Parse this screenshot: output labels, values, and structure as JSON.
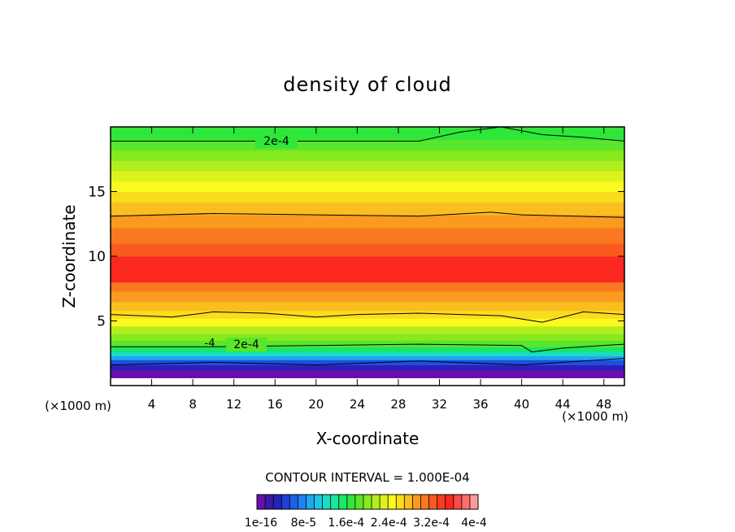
{
  "chart_data": {
    "type": "heatmap",
    "title": "density of cloud",
    "xlabel": "X-coordinate",
    "ylabel": "Z-coordinate",
    "x_unit_left": "(×1000 m)",
    "x_unit_right": "(×1000 m)",
    "xlim": [
      0,
      50
    ],
    "ylim": [
      0,
      20
    ],
    "x_ticks": [
      4,
      8,
      12,
      16,
      20,
      24,
      28,
      32,
      36,
      40,
      44,
      48
    ],
    "y_ticks": [
      5,
      10,
      15
    ],
    "contour_interval_text": "CONTOUR INTERVAL = 1.000E-04",
    "contour_labels": [
      "2e-4",
      "2e-4",
      "-4"
    ],
    "colorbar": {
      "colors": [
        "#6a0dad",
        "#3a1aa0",
        "#1f25b8",
        "#1f3fd6",
        "#1f5fe6",
        "#1f82ee",
        "#1fa6ee",
        "#19c6e6",
        "#19dcc6",
        "#19e69a",
        "#19e66a",
        "#2fe63a",
        "#5ae62a",
        "#86ea1f",
        "#b2ee1f",
        "#dcf21f",
        "#fafa1f",
        "#fadc1f",
        "#fabe1f",
        "#fa9a1f",
        "#fa781f",
        "#fa5a1f",
        "#fa3c1f",
        "#fa281f",
        "#fa4a4a",
        "#fa6e6e",
        "#fa9a9a"
      ],
      "labels": [
        "1e-16",
        "8e-5",
        "1.6e-4",
        "2.4e-4",
        "3.2e-4",
        "4e-4"
      ]
    },
    "bands": [
      {
        "z_low": 0.0,
        "z_high": 0.6,
        "color": "#ffffff"
      },
      {
        "z_low": 0.6,
        "z_high": 1.2,
        "color": "#6a0dad"
      },
      {
        "z_low": 1.2,
        "z_high": 1.6,
        "color": "#2d1fb8"
      },
      {
        "z_low": 1.6,
        "z_high": 2.0,
        "color": "#1f4fe0"
      },
      {
        "z_low": 2.0,
        "z_high": 2.3,
        "color": "#1fa6ee"
      },
      {
        "z_low": 2.3,
        "z_high": 2.6,
        "color": "#19dcc6"
      },
      {
        "z_low": 2.6,
        "z_high": 3.0,
        "color": "#19e66a"
      },
      {
        "z_low": 3.0,
        "z_high": 3.5,
        "color": "#5ae62a"
      },
      {
        "z_low": 3.5,
        "z_high": 4.0,
        "color": "#86ea1f"
      },
      {
        "z_low": 4.0,
        "z_high": 4.6,
        "color": "#b2ee1f"
      },
      {
        "z_low": 4.6,
        "z_high": 5.2,
        "color": "#fafa1f"
      },
      {
        "z_low": 5.2,
        "z_high": 5.8,
        "color": "#fadc1f"
      },
      {
        "z_low": 5.8,
        "z_high": 6.5,
        "color": "#fabe1f"
      },
      {
        "z_low": 6.5,
        "z_high": 7.3,
        "color": "#fa9a1f"
      },
      {
        "z_low": 7.3,
        "z_high": 8.0,
        "color": "#fa781f"
      },
      {
        "z_low": 8.0,
        "z_high": 10.0,
        "color": "#fa281f"
      },
      {
        "z_low": 10.0,
        "z_high": 11.0,
        "color": "#fa5a1f"
      },
      {
        "z_low": 11.0,
        "z_high": 12.2,
        "color": "#fa781f"
      },
      {
        "z_low": 12.2,
        "z_high": 13.2,
        "color": "#fa9a1f"
      },
      {
        "z_low": 13.2,
        "z_high": 14.2,
        "color": "#fabe1f"
      },
      {
        "z_low": 14.2,
        "z_high": 15.0,
        "color": "#fadc1f"
      },
      {
        "z_low": 15.0,
        "z_high": 15.8,
        "color": "#fafa1f"
      },
      {
        "z_low": 15.8,
        "z_high": 16.6,
        "color": "#dcf21f"
      },
      {
        "z_low": 16.6,
        "z_high": 17.4,
        "color": "#b2ee1f"
      },
      {
        "z_low": 17.4,
        "z_high": 18.2,
        "color": "#86ea1f"
      },
      {
        "z_low": 18.2,
        "z_high": 19.0,
        "color": "#5ae62a"
      },
      {
        "z_low": 19.0,
        "z_high": 20.0,
        "color": "#2fe63a"
      }
    ],
    "contours": [
      {
        "level": "2e-4",
        "points": [
          [
            0,
            18.9
          ],
          [
            30,
            18.9
          ],
          [
            34,
            19.6
          ],
          [
            38,
            20.0
          ],
          [
            42,
            19.4
          ],
          [
            46,
            19.2
          ],
          [
            50,
            18.9
          ]
        ]
      },
      {
        "level": "",
        "points": [
          [
            0,
            13.1
          ],
          [
            10,
            13.3
          ],
          [
            20,
            13.2
          ],
          [
            30,
            13.1
          ],
          [
            37,
            13.4
          ],
          [
            40,
            13.2
          ],
          [
            50,
            13.0
          ]
        ]
      },
      {
        "level": "",
        "points": [
          [
            0,
            5.5
          ],
          [
            6,
            5.3
          ],
          [
            10,
            5.7
          ],
          [
            15,
            5.6
          ],
          [
            20,
            5.3
          ],
          [
            24,
            5.5
          ],
          [
            30,
            5.6
          ],
          [
            38,
            5.4
          ],
          [
            42,
            4.9
          ],
          [
            46,
            5.7
          ],
          [
            50,
            5.5
          ]
        ]
      },
      {
        "level": "2e-4",
        "points": [
          [
            0,
            3.0
          ],
          [
            10,
            3.0
          ],
          [
            20,
            3.1
          ],
          [
            30,
            3.2
          ],
          [
            40,
            3.1
          ],
          [
            41,
            2.6
          ],
          [
            44,
            2.9
          ],
          [
            50,
            3.2
          ]
        ]
      },
      {
        "level": "",
        "points": [
          [
            0,
            1.6
          ],
          [
            10,
            1.8
          ],
          [
            20,
            1.6
          ],
          [
            30,
            1.9
          ],
          [
            40,
            1.6
          ],
          [
            50,
            2.1
          ]
        ]
      }
    ]
  }
}
